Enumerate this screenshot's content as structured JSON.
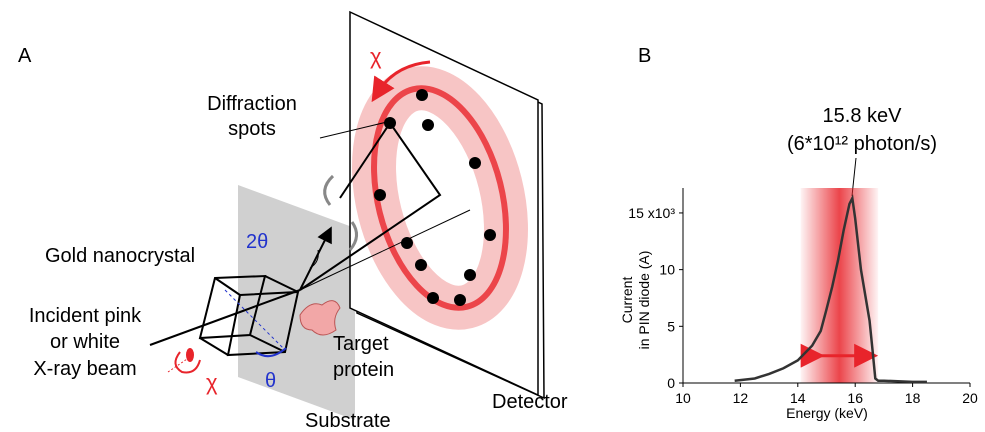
{
  "panel_a": {
    "label": "A",
    "spots_label": [
      "Diffraction",
      "spots"
    ],
    "crystal_label": "Gold nanocrystal",
    "beam_label": [
      "Incident pink",
      "or white",
      "X-ray beam"
    ],
    "two_theta": "2θ",
    "chi_top": "χ",
    "chi_bottom": "χ",
    "theta": "θ",
    "protein_label": [
      "Target",
      "protein"
    ],
    "substrate_label": "Substrate",
    "detector_label": "Detector"
  },
  "chart_data": {
    "type": "line",
    "panel_label": "B",
    "annotation": [
      "15.8 keV",
      "(6*10¹² photon/s)"
    ],
    "xlabel": "Energy (keV)",
    "ylabel": [
      "Current",
      "in PIN diode (A)"
    ],
    "x": [
      11.8,
      12.5,
      13,
      13.5,
      14,
      14.5,
      14.8,
      15,
      15.2,
      15.4,
      15.6,
      15.8,
      15.9,
      16,
      16.2,
      16.4,
      16.5,
      16.6,
      16.7,
      16.8,
      17,
      18,
      18.5
    ],
    "values": [
      0.2,
      0.4,
      0.8,
      1.3,
      2,
      3.3,
      4.6,
      6.5,
      8.5,
      10.8,
      13.5,
      15.8,
      16.3,
      14.5,
      10,
      7,
      5.5,
      3,
      0.4,
      0.2,
      0.2,
      0.1,
      0.1
    ],
    "color": "#333333",
    "band": [
      14.1,
      16.8
    ],
    "band_color": "#e8242b",
    "xlim": [
      10,
      20
    ],
    "xticks": [
      10,
      12,
      14,
      16,
      18,
      20
    ],
    "ylim": [
      0,
      17.2
    ],
    "yticks": [
      0,
      5,
      10,
      {
        "value": 15,
        "label": "15 x10³"
      }
    ]
  }
}
